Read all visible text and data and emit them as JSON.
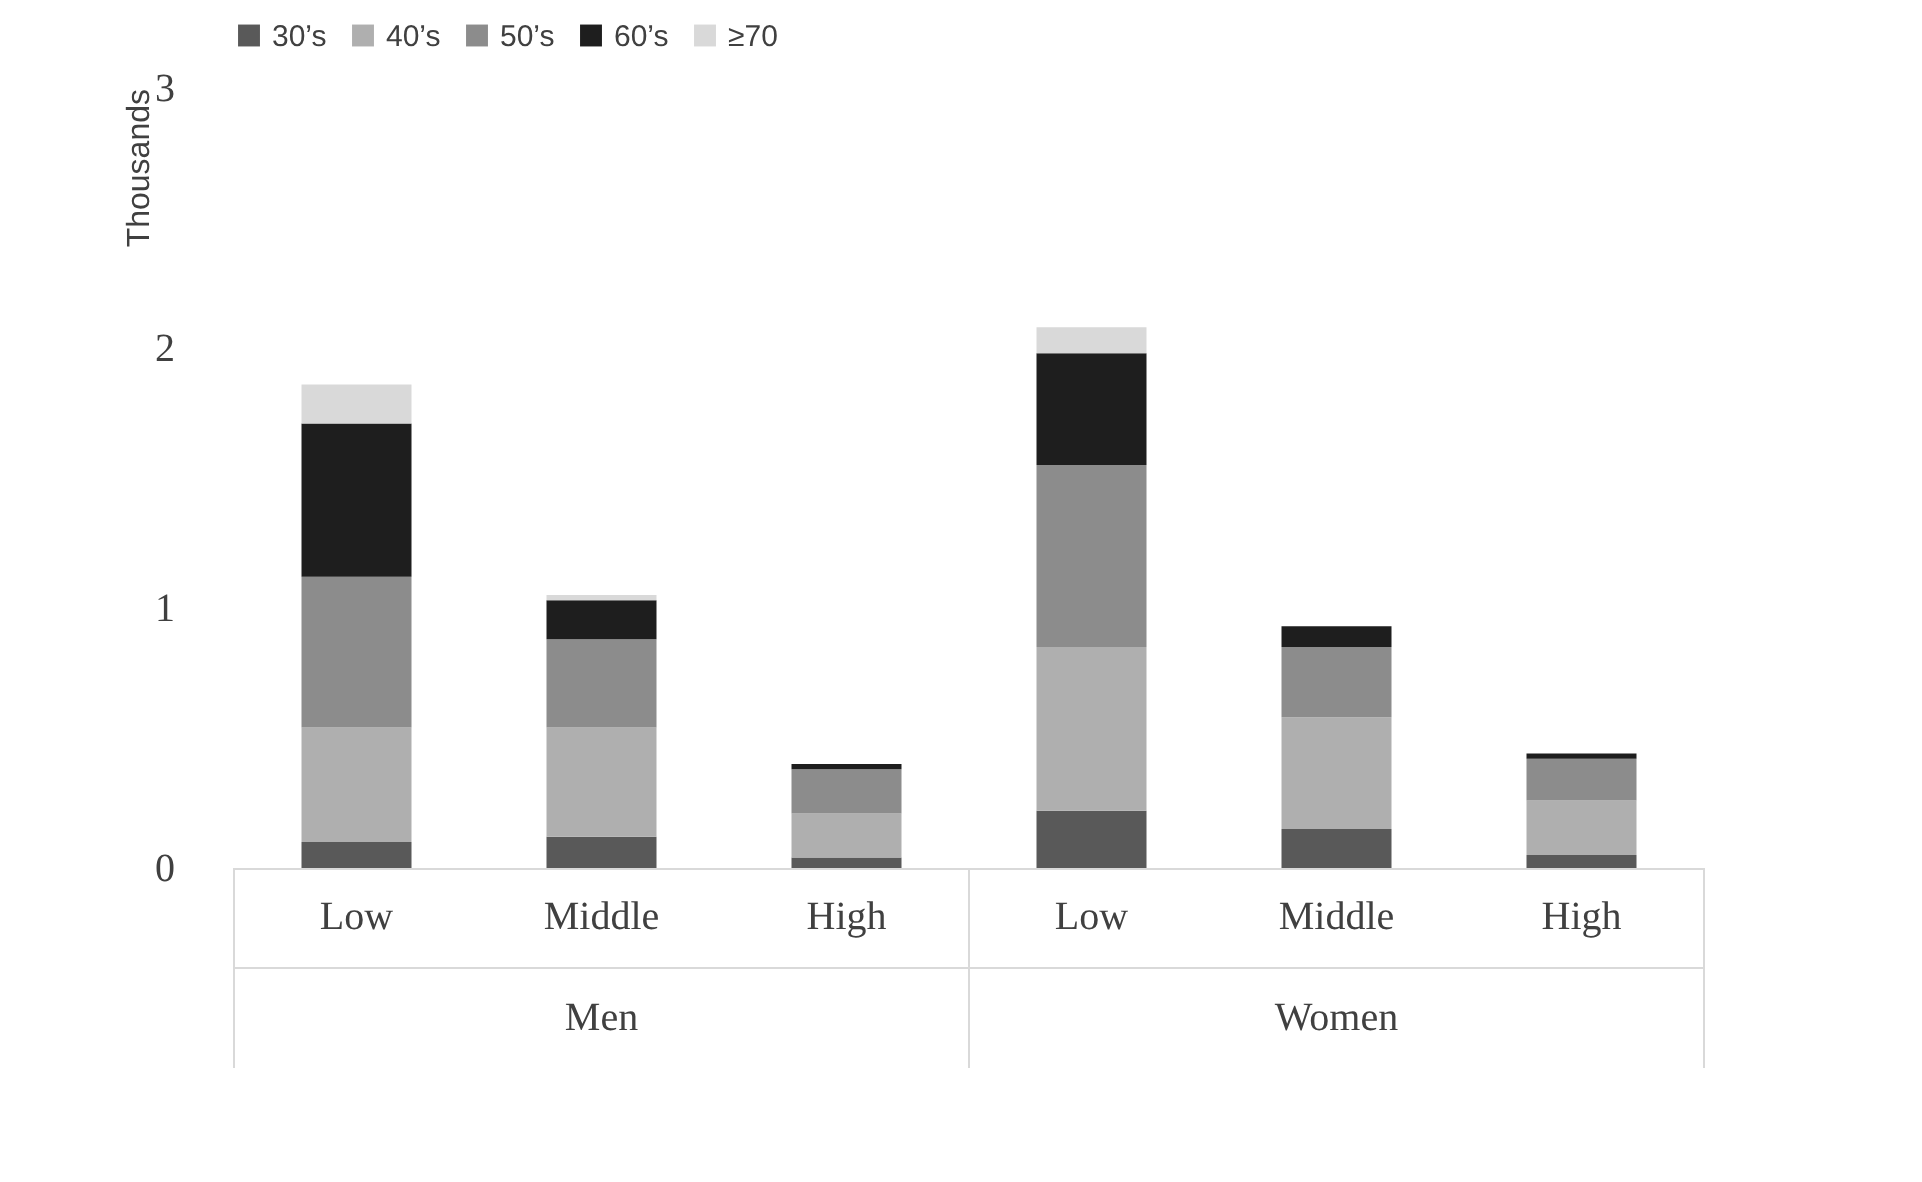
{
  "chart_data": {
    "type": "bar",
    "stacked": true,
    "ylabel": "Thousands",
    "categories": [
      "Low",
      "Middle",
      "High",
      "Low",
      "Middle",
      "High"
    ],
    "annotations": [
      "Men",
      "Women"
    ],
    "series": [
      {
        "name": "30’s",
        "color": "#595959",
        "values": [
          0.1,
          0.12,
          0.04,
          0.22,
          0.15,
          0.05
        ]
      },
      {
        "name": "40’s",
        "color": "#afafaf",
        "values": [
          0.44,
          0.42,
          0.17,
          0.63,
          0.43,
          0.21
        ]
      },
      {
        "name": "50’s",
        "color": "#8c8c8c",
        "values": [
          0.58,
          0.34,
          0.17,
          0.7,
          0.27,
          0.16
        ]
      },
      {
        "name": "60’s",
        "color": "#1e1e1e",
        "values": [
          0.59,
          0.15,
          0.02,
          0.43,
          0.08,
          0.02
        ]
      },
      {
        "name": "≥70",
        "color": "#d9d9d9",
        "values": [
          0.15,
          0.02,
          null,
          0.1,
          0,
          0
        ]
      }
    ],
    "ylim": [
      0,
      3
    ],
    "yticks": [
      0,
      1,
      2,
      3
    ],
    "grid": false,
    "legend": "top"
  }
}
